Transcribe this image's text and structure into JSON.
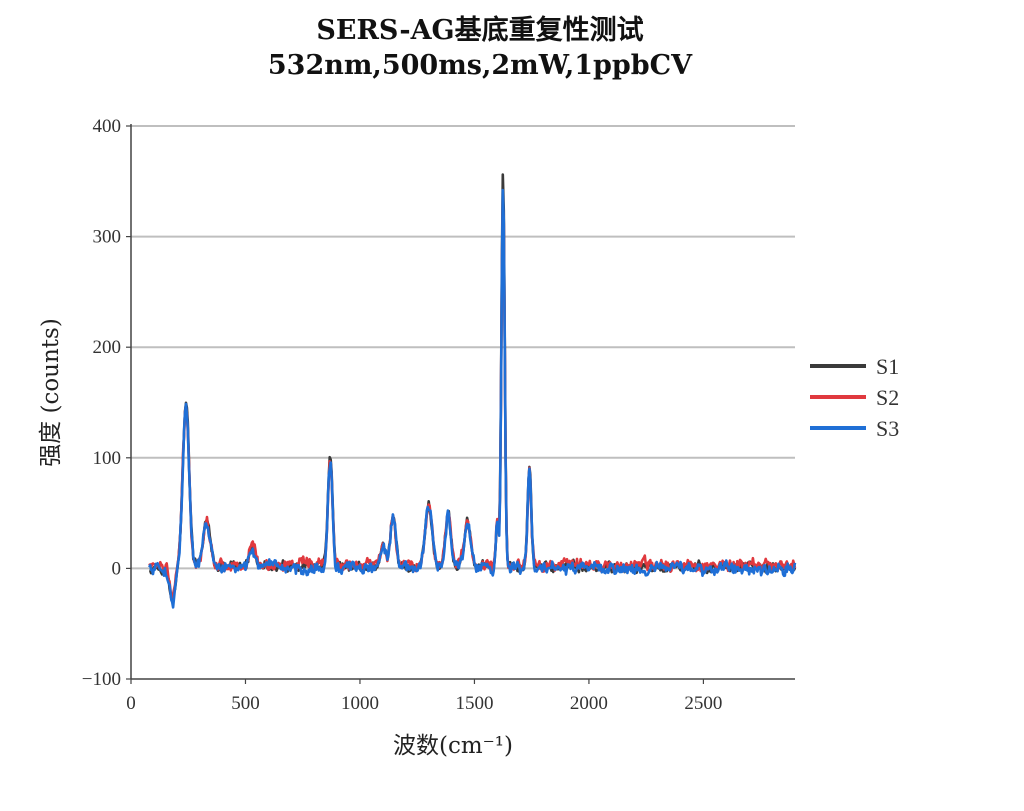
{
  "chart_data": {
    "type": "line",
    "title": "SERS-AG基底重复性测试",
    "subtitle": "532nm,500ms,2mW,1ppbCV",
    "xlabel": "波数",
    "xlabel_unit": "(cm⁻¹)",
    "ylabel": "强度 (counts)",
    "xlim": [
      0,
      2900
    ],
    "ylim": [
      -100,
      400
    ],
    "x_ticks": [
      "0",
      "500",
      "1000",
      "1500",
      "2000",
      "2500"
    ],
    "y_ticks": [
      "−100",
      "0",
      "100",
      "200",
      "300",
      "400"
    ],
    "grid": "horizontal",
    "legend_position": "right",
    "x_start": 80,
    "x_end": 2900,
    "peaks": [
      {
        "x": 180,
        "height": -30,
        "width": 12
      },
      {
        "x": 240,
        "height": 145,
        "width": 14
      },
      {
        "x": 330,
        "height": 42,
        "width": 15
      },
      {
        "x": 530,
        "height": 20,
        "width": 12
      },
      {
        "x": 870,
        "height": 95,
        "width": 10
      },
      {
        "x": 1100,
        "height": 18,
        "width": 12
      },
      {
        "x": 1145,
        "height": 45,
        "width": 12
      },
      {
        "x": 1300,
        "height": 55,
        "width": 15
      },
      {
        "x": 1385,
        "height": 48,
        "width": 12
      },
      {
        "x": 1470,
        "height": 40,
        "width": 14
      },
      {
        "x": 1600,
        "height": 40,
        "width": 6
      },
      {
        "x": 1625,
        "height": 345,
        "width": 7
      },
      {
        "x": 1740,
        "height": 90,
        "width": 8
      }
    ],
    "series": [
      {
        "name": "S1",
        "color": "#3a3a3a",
        "noise": 6,
        "offset": 1,
        "scale": 1.03
      },
      {
        "name": "S2",
        "color": "#e0393e",
        "noise": 7,
        "offset": 3,
        "scale": 0.98
      },
      {
        "name": "S3",
        "color": "#1f6fd6",
        "noise": 7,
        "offset": 0,
        "scale": 1.0
      }
    ]
  }
}
